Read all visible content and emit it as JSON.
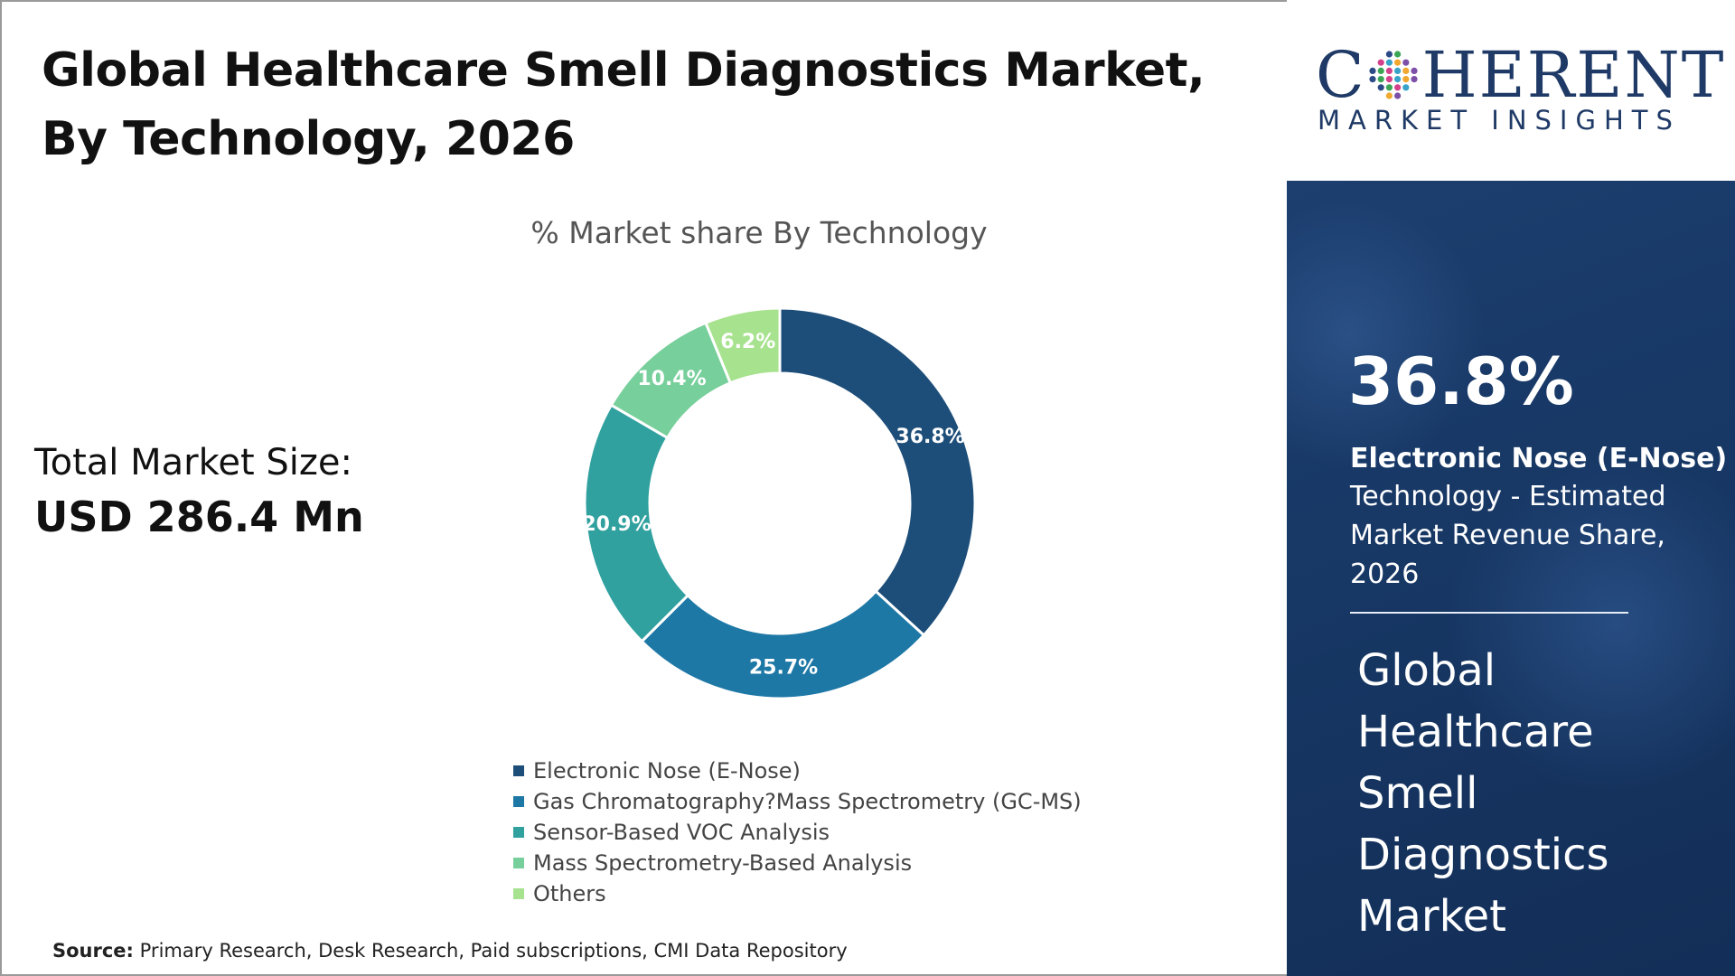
{
  "title": "Global Healthcare Smell Diagnostics Market, By Technology, 2026",
  "total": {
    "label": "Total Market Size:",
    "value": "USD 286.4 Mn"
  },
  "source": {
    "label": "Source:",
    "text": "Primary Research, Desk Research, Paid subscriptions, CMI Data Repository"
  },
  "logo": {
    "word_left": "C",
    "word_right": "HERENT",
    "sub": "MARKET INSIGHTS",
    "colors": [
      "#2b4a86",
      "#3aa655",
      "#d4408b",
      "#37a3c9",
      "#f0a830",
      "#7d4fa8"
    ]
  },
  "panel": {
    "highlight_value": "36.8%",
    "segment_name": "Electronic Nose (E-Nose)",
    "description": "Technology - Estimated Market Revenue Share, 2026",
    "title": "Global Healthcare Smell Diagnostics Market"
  },
  "chart_data": {
    "type": "pie",
    "donut": true,
    "title": "% Market share By Technology",
    "legend_position": "bottom",
    "categories": [
      "Electronic Nose (E-Nose)",
      "Gas Chromatography?Mass Spectrometry (GC-MS)",
      "Sensor-Based VOC Analysis",
      "Mass Spectrometry-Based Analysis",
      "Others"
    ],
    "values": [
      36.8,
      25.7,
      20.9,
      10.4,
      6.2
    ],
    "labels": [
      "36.8%",
      "25.7%",
      "20.9%",
      "10.4%",
      "6.2%"
    ],
    "colors": [
      "#1d4e79",
      "#1e78a6",
      "#30a19f",
      "#77cf9b",
      "#a7e28e"
    ]
  }
}
